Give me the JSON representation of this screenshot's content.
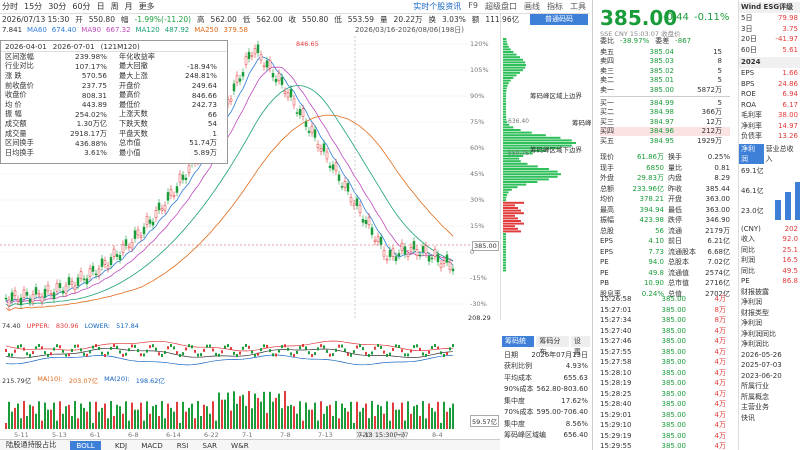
{
  "toolbar": {
    "tabs": [
      "分时",
      "15分",
      "30分",
      "60分",
      "日",
      "周",
      "月",
      "更多"
    ],
    "right": [
      "实时个股资讯",
      "F9",
      "超级盘口",
      "超级盘口",
      "画线",
      "指标",
      "工具"
    ],
    "brand_tab": "普通码码"
  },
  "quote_line": {
    "date": "2026/07/13 15:30",
    "open_label": "开",
    "open": "550.80",
    "chg_label": "幅",
    "chg": "-1.99%(-11.20)",
    "high_label": "高",
    "high": "562.00",
    "low_label": "低",
    "low": "562.00",
    "close_label": "收",
    "close": "550.80",
    "amp_label": "低",
    "amp": "553.59",
    "vol_label": "量",
    "vol": "20.22万",
    "turn_label": "换",
    "turn": "3.03%",
    "amt_label": "额",
    "amt": "111.96亿"
  },
  "ma_line": {
    "a": "7.841",
    "ma60_label": "MA60",
    "ma60": "674.40",
    "ma90_label": "MA90",
    "ma90": "667.32",
    "ma120_label": "MA120",
    "ma120": "487.92",
    "ma250_label": "MA250",
    "ma250": "379.58"
  },
  "range_text": "2026/03/16-2026/08/06(198日)",
  "stats": {
    "header": [
      "2026-04-01",
      "2026-07-01",
      "(121M120)"
    ],
    "rows": [
      [
        "区间涨幅",
        "239.98%",
        "年化收益率",
        ""
      ],
      [
        "行业对比",
        "107.17%",
        "最大回撤",
        "-18.94%"
      ],
      [
        "涨 跌",
        "570.56",
        "最大上涨",
        "248.81%"
      ],
      [
        "前收盘价",
        "237.75",
        "开盘价",
        "249.64"
      ],
      [
        "收盘价",
        "808.31",
        "最高价",
        "846.66"
      ],
      [
        "均 价",
        "443.89",
        "最低价",
        "242.73"
      ],
      [
        "振 幅",
        "254.02%",
        "上涨天数",
        "66"
      ],
      [
        "成交额",
        "1.30万亿",
        "下跌天数",
        "54"
      ],
      [
        "成交量",
        "2918.17万",
        "平盘天数",
        "1"
      ],
      [
        "区间换手",
        "436.88%",
        "总市值",
        "51.74万"
      ],
      [
        "日均换手",
        "3.61%",
        "最小值",
        "5.89万"
      ]
    ]
  },
  "yaxis": [
    "120%",
    "105%",
    "90%",
    "75%",
    "60%",
    "45%",
    "30%",
    "15%",
    "0",
    "-15%",
    "-30%"
  ],
  "ylabels_price": {
    "p846": "846.65",
    "p385": "385.00",
    "p208": "208.29"
  },
  "chip_labels": {
    "top": "筹码峰区域上边界",
    "mid": "筹码峰",
    "bottom": "筹码峰区域下边界",
    "up": "636.40",
    "low": "550.76"
  },
  "indicator": {
    "boll_prefix": "74.40",
    "upper_label": "UPPER:",
    "upper": "830.96",
    "lower_label": "LOWER:",
    "lower": "517.84",
    "vol_prefix": "215.79亿",
    "ma10_label": "MA(10):",
    "ma10": "203.07亿",
    "ma20_label": "MA(20):",
    "ma20": "198.62亿",
    "vol_axis": "59.57亿",
    "date_marker": "7-13 15:30(一)"
  },
  "xaxis": [
    "5-11",
    "5-13",
    "6-1",
    "6-8",
    "6-14",
    "6-22",
    "7-1",
    "7-8",
    "7-13",
    "7-20",
    "7-27",
    "8-4"
  ],
  "bottom_tabs": [
    "陆股通持股占比",
    "BOLL",
    "KDJ",
    "MACD",
    "RSI",
    "SAR",
    "W&R"
  ],
  "chip_stats": {
    "tabs": [
      "筹码统计",
      "筹码分布",
      "设置"
    ],
    "rows": [
      [
        "日期",
        "2026年07月13日"
      ],
      [
        "获利比例",
        "4.93%"
      ],
      [
        "平均成本",
        "655.63"
      ],
      [
        "90%成本",
        "562.80-803.60"
      ],
      [
        "集中度",
        "17.62%"
      ],
      [
        "70%成本",
        "595.00-706.40"
      ],
      [
        "集中度",
        "8.56%"
      ],
      [
        "筹码峰区域编",
        "656.40"
      ]
    ]
  },
  "quote": {
    "price": "385.00",
    "chg": "-0.44",
    "pct": "-0.11%",
    "code": "SSE CNY 15:03:07 收盘价",
    "weibi_label": "委比",
    "weibi": "-38.97%",
    "weicha_label": "委差",
    "weicha": "-867",
    "ask": [
      [
        "卖五",
        "385.04",
        "15"
      ],
      [
        "卖四",
        "385.03",
        "8"
      ],
      [
        "卖三",
        "385.02",
        "5"
      ],
      [
        "卖二",
        "385.01",
        "5"
      ],
      [
        "卖一",
        "385.00",
        "5872万"
      ]
    ],
    "bid": [
      [
        "买一",
        "384.99",
        "5"
      ],
      [
        "买二",
        "384.98",
        "366万"
      ],
      [
        "买三",
        "384.97",
        "12万"
      ],
      [
        "买四",
        "384.96",
        "212万"
      ],
      [
        "买五",
        "384.95",
        "1929万"
      ]
    ],
    "detail": [
      [
        "现价",
        "61.86万",
        "换手",
        "0.25%"
      ],
      [
        "现手",
        "6850",
        "量比",
        "0.81"
      ],
      [
        "外盘",
        "29.83万",
        "内盘",
        "8.29"
      ],
      [
        "总额",
        "233.96亿",
        "昨收",
        "385.44"
      ],
      [
        "均价",
        "378.21",
        "开盘",
        "363.00"
      ],
      [
        "最高",
        "394.94",
        "最低",
        "363.00"
      ],
      [
        "振幅",
        "423.98",
        "跌停",
        "346.90"
      ],
      [
        "总股",
        "56",
        "流通",
        "2179万"
      ],
      [
        "EPS",
        "4.10",
        "前日",
        "6.21亿"
      ],
      [
        "EPS",
        "7.73",
        "流通股本",
        "6.68亿"
      ],
      [
        "PE",
        "94.0",
        "总股本",
        "7.02亿"
      ],
      [
        "PE",
        "49.8",
        "流通值",
        "2574亿"
      ],
      [
        "PB",
        "10.90",
        "总市值",
        "2716亿"
      ],
      [
        "股息率",
        "0.24%",
        "总值",
        "2702亿"
      ]
    ],
    "ticks": [
      [
        "15:26:58",
        "385.00",
        "4万"
      ],
      [
        "15:27:01",
        "385.00",
        "8万"
      ],
      [
        "15:27:34",
        "385.00",
        "8万"
      ],
      [
        "15:27:40",
        "385.00",
        "4万"
      ],
      [
        "15:27:46",
        "385.00",
        "4万"
      ],
      [
        "15:27:55",
        "385.00",
        "4万"
      ],
      [
        "15:27:58",
        "385.00",
        "4万"
      ],
      [
        "15:28:10",
        "385.00",
        "4万"
      ],
      [
        "15:28:19",
        "385.00",
        "4万"
      ],
      [
        "15:28:25",
        "385.00",
        "4万"
      ],
      [
        "15:28:40",
        "385.00",
        "4万"
      ],
      [
        "15:29:01",
        "385.00",
        "4万"
      ],
      [
        "15:29:10",
        "385.00",
        "4万"
      ],
      [
        "15:29:19",
        "385.00",
        "4万"
      ],
      [
        "15:29:55",
        "385.00",
        "4万"
      ]
    ]
  },
  "side": {
    "wind": "Wind ESG评级",
    "rows1": [
      [
        "5日",
        "79.98"
      ],
      [
        "3日",
        "3.75"
      ],
      [
        "20日",
        "-41.97"
      ],
      [
        "60日",
        "5.61"
      ]
    ],
    "year": "2024",
    "rows2": [
      [
        "EPS",
        "1.66"
      ],
      [
        "BPS",
        "24.86"
      ],
      [
        "ROE",
        "6.94"
      ],
      [
        "ROA",
        "6.17"
      ],
      [
        "毛利率",
        "38.00"
      ],
      [
        "净利率",
        "14.97"
      ],
      [
        "负债率",
        "13.26"
      ]
    ],
    "tabs": [
      "净利润",
      "营业总收入"
    ],
    "vals": [
      "69.1亿",
      "46.1亿",
      "23.0亿"
    ],
    "axis": [
      "2",
      "2.75",
      "2.21"
    ],
    "rows3": [
      [
        "(CNY)",
        "202"
      ],
      [
        "收入",
        "92.0"
      ],
      [
        "同比",
        "25.1"
      ],
      [
        "利润",
        "16.5"
      ],
      [
        "同比",
        "49.5"
      ],
      [
        "PE",
        "86.8"
      ]
    ],
    "links": [
      "财报披露",
      "净利润",
      "财报类型",
      "净利润",
      "净利润同比",
      "净利润比"
    ],
    "dates": [
      "2026-05-26",
      "2025-07-03",
      "2023-06-20"
    ],
    "bottom": [
      "所属行业",
      "所属概念",
      "主营业务",
      "快讯"
    ]
  }
}
